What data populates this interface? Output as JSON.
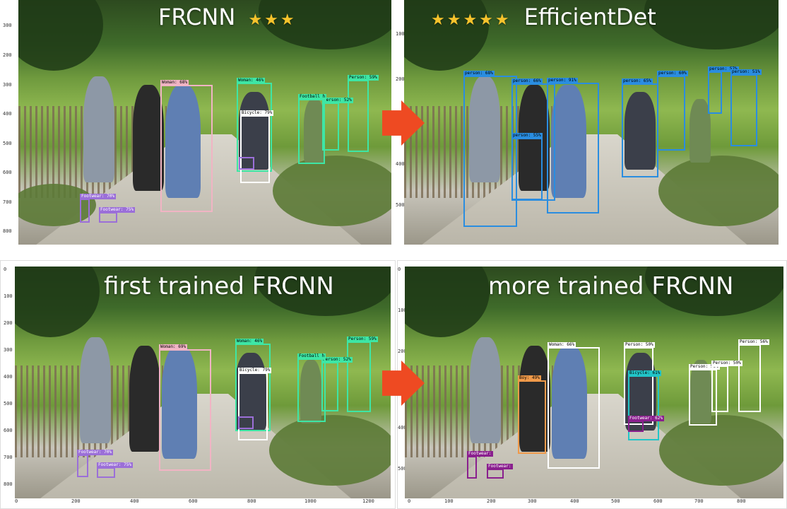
{
  "panels": {
    "top_left": {
      "title": "FRCNN",
      "stars": "★★★",
      "y_ticks": [
        "300",
        "200",
        "300",
        "400",
        "500",
        "600",
        "700",
        "800"
      ],
      "x_ticks": [],
      "boxes": [
        {
          "label": "Woman: 68%",
          "color": "#f1b4c4"
        },
        {
          "label": "Woman: 46%",
          "color": "#3ee6a5"
        },
        {
          "label": "Bicycle: 79%",
          "color": "#ffffff"
        },
        {
          "label": "Person: 59%",
          "color": "#3ee6a5"
        },
        {
          "label": "Person: 52%",
          "color": "#3ee6a5"
        },
        {
          "label": "Football h",
          "color": "#3ee6a5"
        },
        {
          "label": "Footwear: 70%",
          "color": "#9b6fd8"
        },
        {
          "label": "Footwear: 75%",
          "color": "#9b6fd8"
        },
        {
          "label": "",
          "color": "#9b6fd8"
        }
      ]
    },
    "top_right": {
      "title": "EfficientDet",
      "stars": "★★★★★",
      "y_ticks": [
        "100",
        "200",
        "300",
        "400",
        "500"
      ],
      "x_ticks": [],
      "boxes": [
        {
          "label": "person: 68%",
          "color": "#2a8de0"
        },
        {
          "label": "person: 66%",
          "color": "#2a8de0"
        },
        {
          "label": "person: 91%",
          "color": "#2a8de0"
        },
        {
          "label": "person: 55%",
          "color": "#2a8de0"
        },
        {
          "label": "person: 65%",
          "color": "#2a8de0"
        },
        {
          "label": "person: 60%",
          "color": "#2a8de0"
        },
        {
          "label": "person: 57%",
          "color": "#2a8de0"
        },
        {
          "label": "person: 51%",
          "color": "#2a8de0"
        }
      ]
    },
    "bottom_left": {
      "title": "first trained FRCNN",
      "y_ticks": [
        "0",
        "100",
        "200",
        "300",
        "400",
        "500",
        "600",
        "700",
        "800"
      ],
      "x_ticks": [
        "0",
        "200",
        "400",
        "600",
        "800",
        "1000",
        "1200"
      ],
      "boxes": [
        {
          "label": "Woman: 69%",
          "color": "#f1b4c4"
        },
        {
          "label": "Woman: 46%",
          "color": "#3ee6a5"
        },
        {
          "label": "Bicycle: 79%",
          "color": "#ffffff"
        },
        {
          "label": "Person: 59%",
          "color": "#3ee6a5"
        },
        {
          "label": "Person: 52%",
          "color": "#3ee6a5"
        },
        {
          "label": "Football h",
          "color": "#3ee6a5"
        },
        {
          "label": "Footwear: 70%",
          "color": "#9b6fd8"
        },
        {
          "label": "Footwear: 75%",
          "color": "#9b6fd8"
        },
        {
          "label": "",
          "color": "#9b6fd8"
        }
      ]
    },
    "bottom_right": {
      "title": "more trained FRCNN",
      "y_ticks": [
        "0",
        "100",
        "200",
        "300",
        "400",
        "500"
      ],
      "x_ticks": [
        "0",
        "100",
        "200",
        "300",
        "400",
        "500",
        "600",
        "700",
        "800"
      ],
      "boxes": [
        {
          "label": "Woman: 66%",
          "color": "#ffffff"
        },
        {
          "label": "Boy: 49%",
          "color": "#f09a4a"
        },
        {
          "label": "Person: 50%",
          "color": "#ffffff"
        },
        {
          "label": "Person: 56%",
          "color": "#ffffff"
        },
        {
          "label": "Person: 50%",
          "color": "#ffffff"
        },
        {
          "label": "Person: 50%",
          "color": "#ffffff"
        },
        {
          "label": "Bicycle: 61%",
          "color": "#22c5c8"
        },
        {
          "label": "Footwear: ",
          "color": "#8a1f8e"
        },
        {
          "label": "Footwear: ",
          "color": "#8a1f8e"
        },
        {
          "label": "Footwear: 62%",
          "color": "#8a1f8e"
        }
      ]
    }
  },
  "arrows": {
    "color": "#ee4a22"
  },
  "star_color": "#f6c32c"
}
